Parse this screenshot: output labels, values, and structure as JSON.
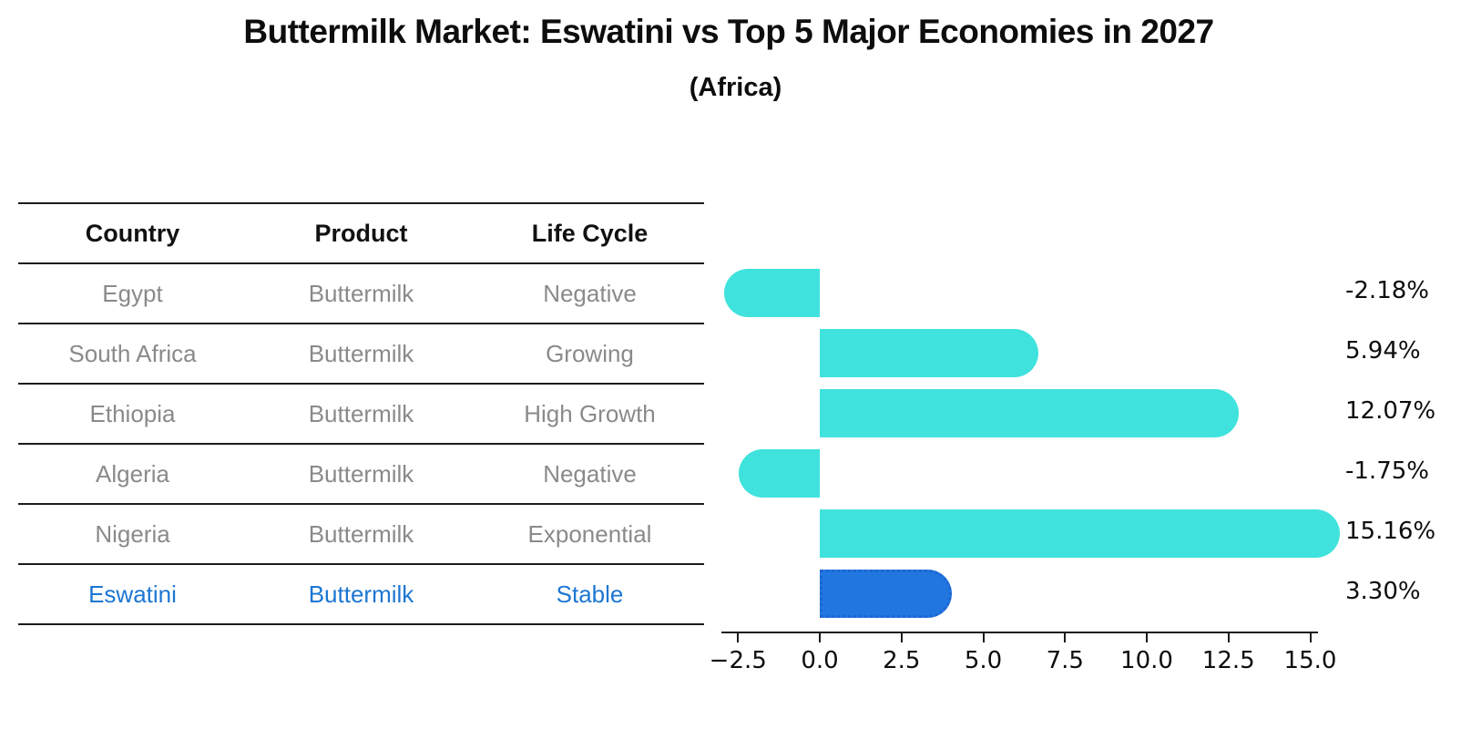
{
  "title": "Buttermilk Market: Eswatini vs Top 5 Major Economies in 2027",
  "subtitle": "(Africa)",
  "table": {
    "headers": [
      "Country",
      "Product",
      "Life Cycle"
    ],
    "rows": [
      {
        "country": "Egypt",
        "product": "Buttermilk",
        "life_cycle": "Negative",
        "highlight": false
      },
      {
        "country": "South Africa",
        "product": "Buttermilk",
        "life_cycle": "Growing",
        "highlight": false
      },
      {
        "country": "Ethiopia",
        "product": "Buttermilk",
        "life_cycle": "High Growth",
        "highlight": false
      },
      {
        "country": "Algeria",
        "product": "Buttermilk",
        "life_cycle": "Negative",
        "highlight": false
      },
      {
        "country": "Nigeria",
        "product": "Buttermilk",
        "life_cycle": "Exponential",
        "highlight": false
      },
      {
        "country": "Eswatini",
        "product": "Buttermilk",
        "life_cycle": "Stable",
        "highlight": true
      }
    ]
  },
  "chart_data": {
    "type": "bar",
    "orientation": "horizontal",
    "categories": [
      "Egypt",
      "South Africa",
      "Ethiopia",
      "Algeria",
      "Nigeria",
      "Eswatini"
    ],
    "values": [
      -2.18,
      5.94,
      12.07,
      -1.75,
      15.16,
      3.3
    ],
    "value_labels": [
      "-2.18%",
      "5.94%",
      "12.07%",
      "-1.75%",
      "15.16%",
      "3.30%"
    ],
    "x_ticks": [
      -2.5,
      0.0,
      2.5,
      5.0,
      7.5,
      10.0,
      12.5,
      15.0
    ],
    "x_tick_labels": [
      "−2.5",
      "0.0",
      "2.5",
      "5.0",
      "7.5",
      "10.0",
      "12.5",
      "15.0"
    ],
    "xlim": [
      -3.0,
      15.3
    ],
    "grid": false,
    "legend": false,
    "highlight_index": 5,
    "bar_color": "#40E2DD",
    "highlight_bar_color": "#2176E0",
    "highlight_border_color": "#1E66D2",
    "highlight_text_color": "#1c76d2",
    "axis_color": "#1c1c1c",
    "muted_text_color": "#8a8a8a"
  }
}
